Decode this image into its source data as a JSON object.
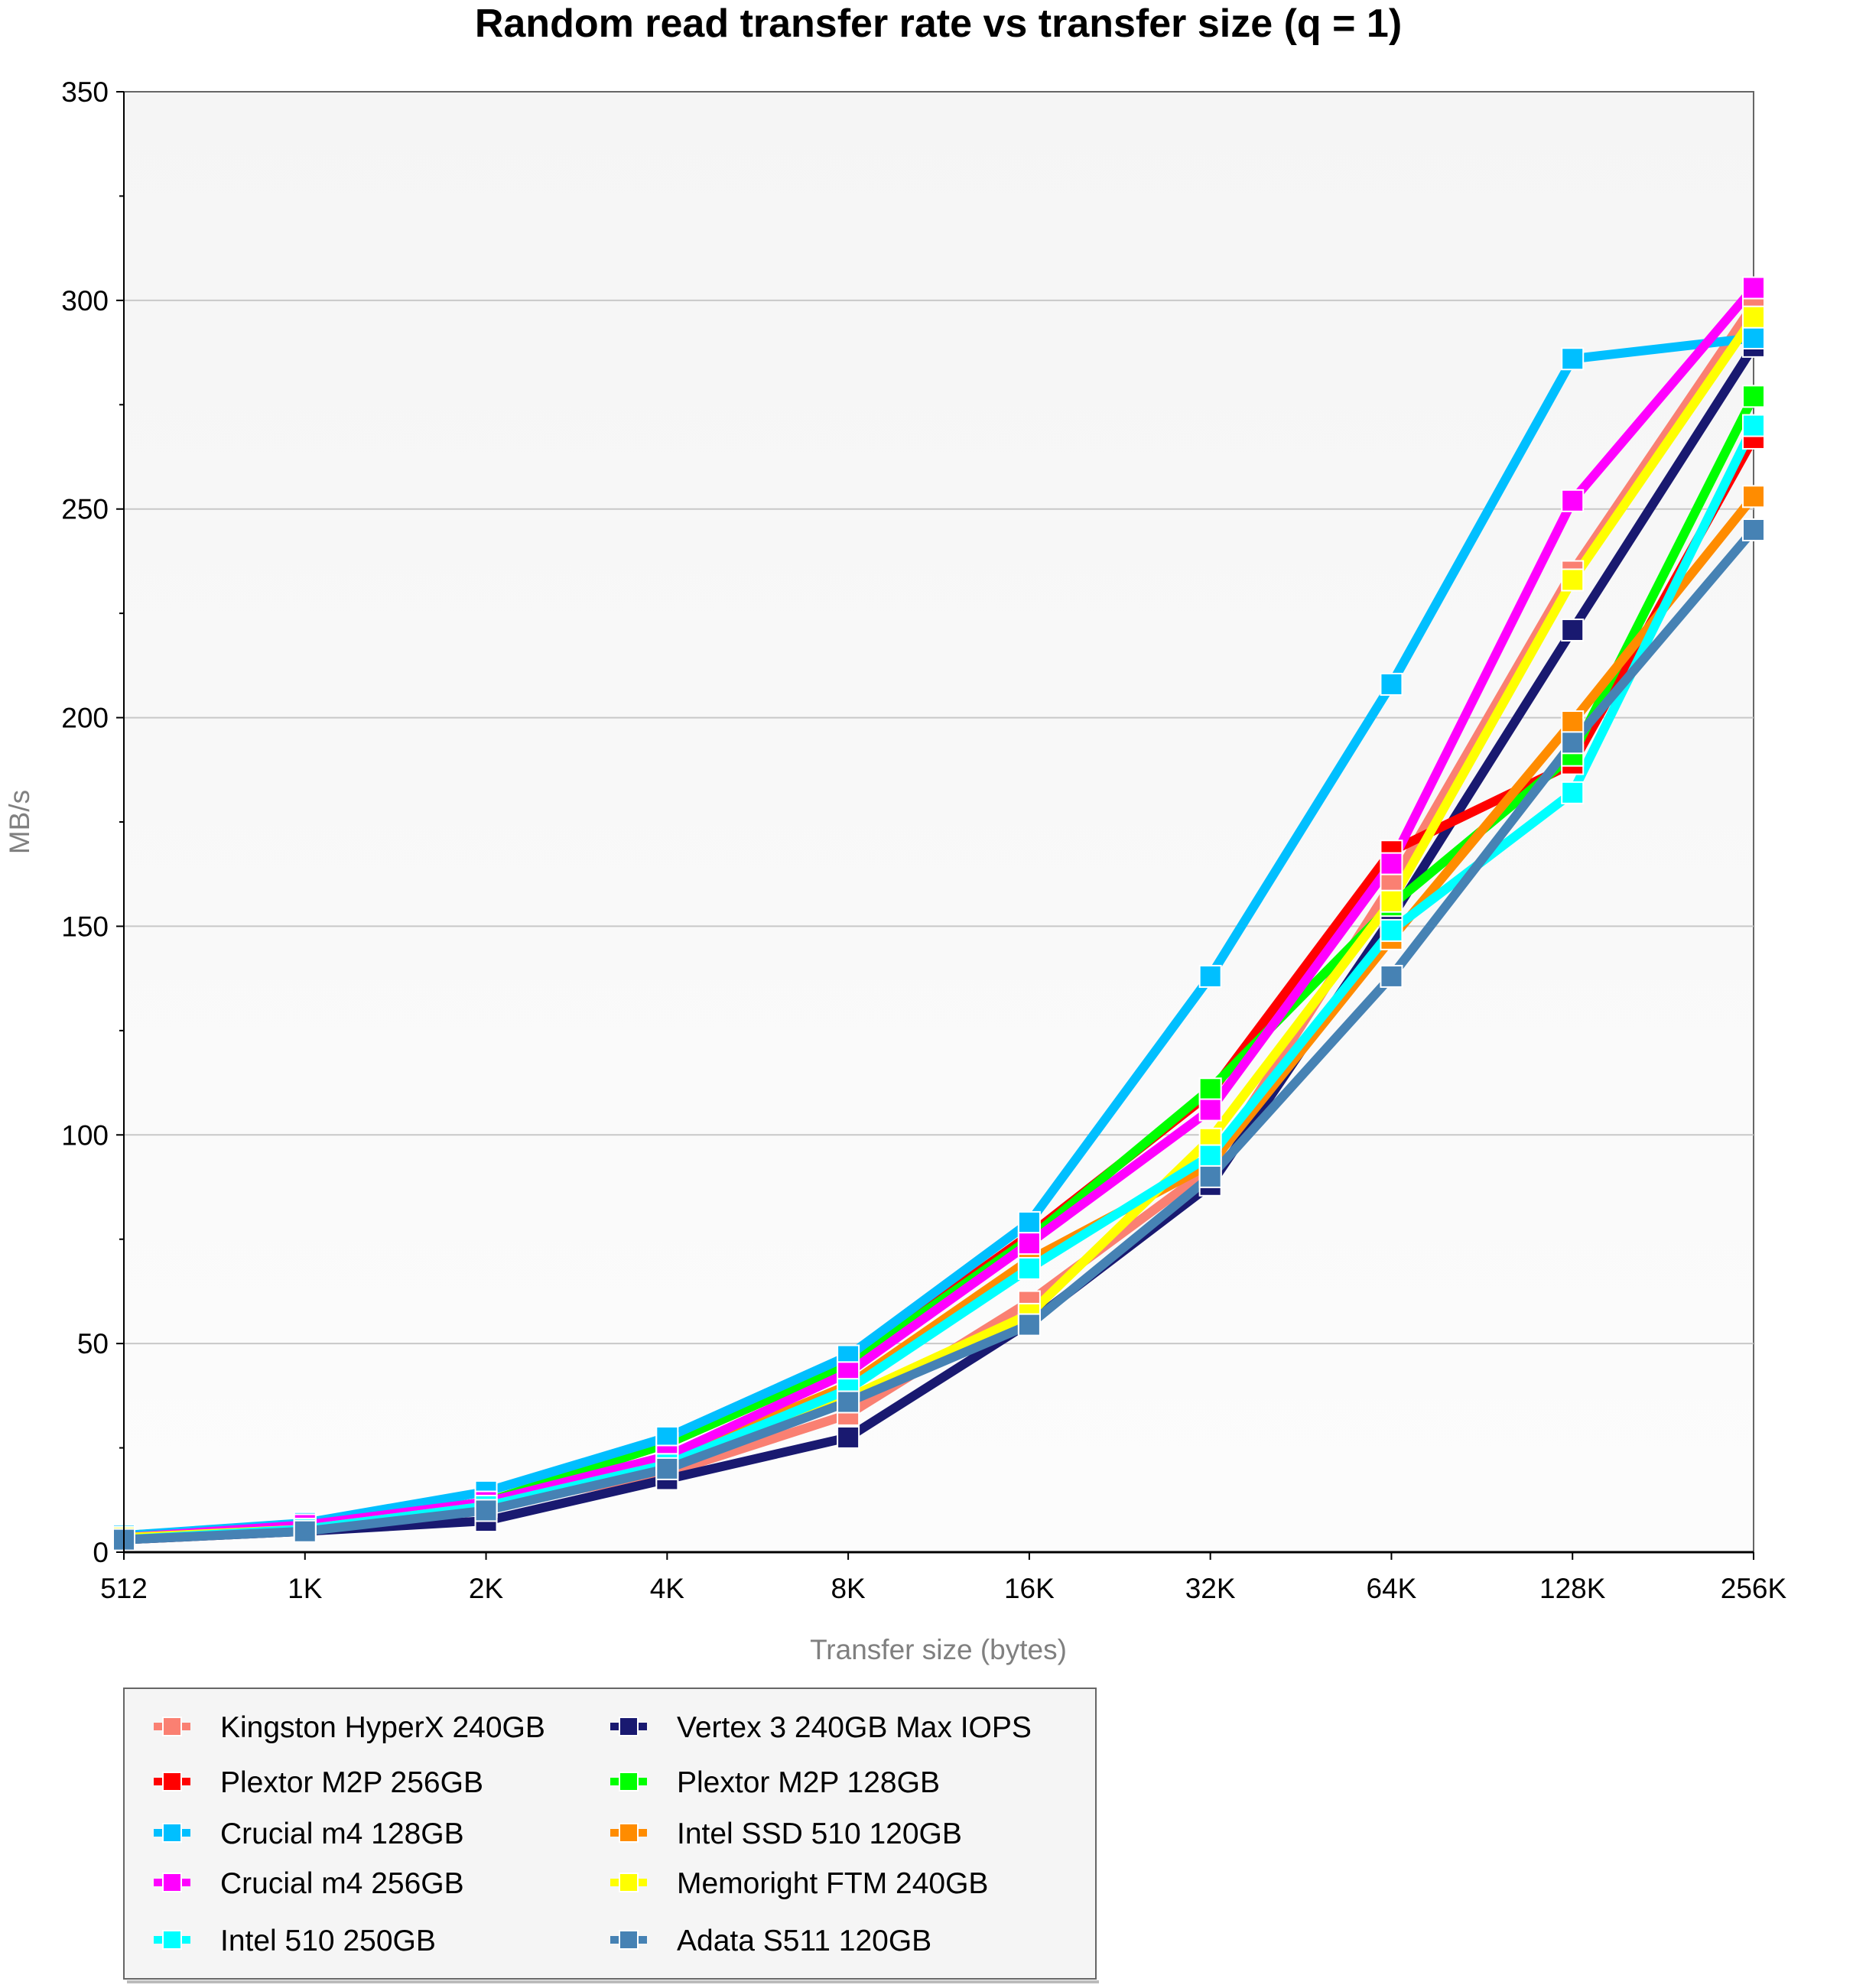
{
  "chart_data": {
    "type": "line",
    "title": "Random read transfer rate vs transfer size (q = 1)",
    "xlabel": "Transfer size (bytes)",
    "ylabel": "MB/s",
    "categories": [
      "512",
      "1K",
      "2K",
      "4K",
      "8K",
      "16K",
      "32K",
      "64K",
      "128K",
      "256K"
    ],
    "ylim": [
      0,
      350
    ],
    "yticks": [
      "0",
      "50",
      "100",
      "150",
      "200",
      "250",
      "300",
      "350"
    ],
    "grid": true,
    "legend_placement": "bottom-left",
    "series": [
      {
        "name": "Kingston HyperX 240GB",
        "color": "#fa8072",
        "values": [
          3,
          5,
          11,
          19,
          33,
          60,
          92,
          160,
          235,
          299
        ]
      },
      {
        "name": "Vertex 3 240GB Max IOPS",
        "color": "#191970",
        "values": [
          3,
          5,
          7.5,
          17.5,
          27.5,
          55,
          88,
          152,
          221,
          289
        ]
      },
      {
        "name": "Plextor M2P 256GB",
        "color": "#ff0000",
        "values": [
          4,
          6.5,
          12,
          26,
          45,
          76,
          110,
          168,
          189,
          267
        ]
      },
      {
        "name": "Plextor M2P 128GB",
        "color": "#00ff00",
        "values": [
          4,
          6.5,
          12,
          26,
          45,
          75,
          111,
          155,
          191,
          277
        ]
      },
      {
        "name": "Crucial m4 128GB",
        "color": "#00bfff",
        "values": [
          4,
          7,
          14.5,
          27.5,
          47,
          79,
          138,
          208,
          286,
          291
        ]
      },
      {
        "name": "Intel SSD 510 120GB",
        "color": "#ff8c00",
        "values": [
          3.5,
          6,
          11,
          22,
          40,
          70,
          93,
          147,
          199,
          253
        ]
      },
      {
        "name": "Crucial m4 256GB",
        "color": "#ff00ff",
        "values": [
          3.5,
          6.5,
          12,
          23,
          43,
          74,
          106,
          165,
          252,
          303
        ]
      },
      {
        "name": "Memoright FTM 240GB",
        "color": "#ffff00",
        "values": [
          3.5,
          5.5,
          11,
          21,
          37,
          57,
          99,
          156,
          233,
          296
        ]
      },
      {
        "name": "Intel 510 250GB",
        "color": "#00ffff",
        "values": [
          3,
          5.5,
          11,
          21,
          39,
          68,
          95,
          149,
          182,
          270
        ]
      },
      {
        "name": "Adata S511 120GB",
        "color": "#4682b4",
        "values": [
          3,
          5,
          10,
          20,
          36,
          54.5,
          90,
          138,
          194,
          245
        ]
      }
    ]
  }
}
